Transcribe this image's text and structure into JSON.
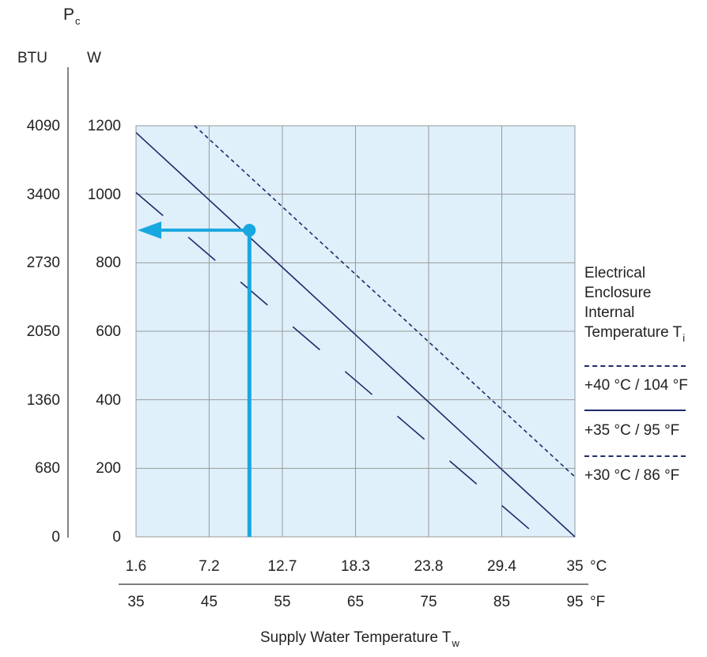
{
  "chart_data": {
    "type": "line",
    "ylabel": {
      "symbol": "P",
      "subscript": "c"
    },
    "y_units": {
      "btu": "BTU",
      "w": "W"
    },
    "y_ticks_w": [
      "0",
      "200",
      "400",
      "600",
      "800",
      "1000",
      "1200"
    ],
    "y_ticks_btu": [
      "0",
      "680",
      "1360",
      "2050",
      "2730",
      "3400",
      "4090"
    ],
    "ylim": [
      0,
      1200
    ],
    "x_ticks_c": [
      "1.6",
      "7.2",
      "12.7",
      "18.3",
      "23.8",
      "29.4",
      "35"
    ],
    "x_unit_c": "°C",
    "x_ticks_f": [
      "35",
      "45",
      "55",
      "65",
      "75",
      "85",
      "95"
    ],
    "x_unit_f": "°F",
    "xlim_f": [
      35,
      95
    ],
    "xlabel": {
      "text": "Supply Water Temperature T",
      "subscript": "w"
    },
    "legend_title": [
      "Electrical",
      "Enclosure",
      "Internal"
    ],
    "legend_title_last": {
      "text": "Temperature T",
      "subscript": "i"
    },
    "grid": true,
    "series": [
      {
        "name": "+40 °C / 104 °F",
        "style": "dashed",
        "x": [
          43,
          95
        ],
        "y": [
          1200,
          175
        ]
      },
      {
        "name": "+35 °C / 95 °F",
        "style": "solid",
        "x": [
          35,
          95
        ],
        "y": [
          1180,
          0
        ]
      },
      {
        "name": "+30 °C / 86 °F",
        "style": "long-dashed",
        "x": [
          35,
          90
        ],
        "y": [
          1005,
          0
        ]
      }
    ],
    "example": {
      "x": 50.5,
      "y": 895
    }
  },
  "colors": {
    "plot_bg": "#dff0fa",
    "grid": "#9a9a9a",
    "series": "#1f2a6b",
    "highlight": "#19a7e0"
  }
}
